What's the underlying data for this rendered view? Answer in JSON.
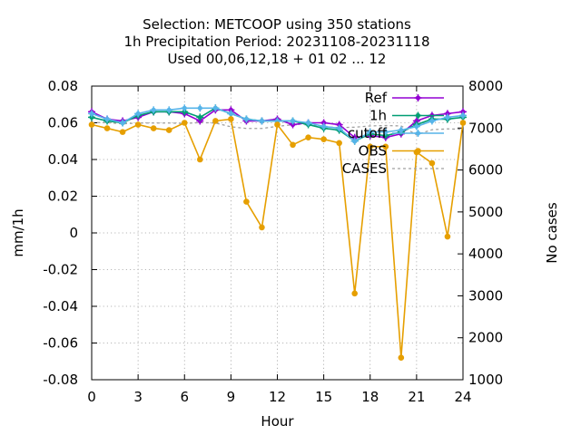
{
  "chart_data": {
    "type": "line",
    "title": [
      "Selection: METCOOP using   350 stations",
      "1h Precipitation   Period: 20231108-20231118",
      "Used  00,06,12,18 + 01 02 ... 12"
    ],
    "xlabel": "Hour",
    "ylabel": "mm/1h",
    "y2label": "No cases",
    "xlim": [
      0,
      24
    ],
    "ylim": [
      -0.08,
      0.08
    ],
    "y2lim": [
      1000,
      8000
    ],
    "xticks": [
      0,
      3,
      6,
      9,
      12,
      15,
      18,
      21,
      24
    ],
    "yticks": [
      -0.08,
      -0.06,
      -0.04,
      -0.02,
      0,
      0.02,
      0.04,
      0.06,
      0.08
    ],
    "y2ticks": [
      1000,
      2000,
      3000,
      4000,
      5000,
      6000,
      7000,
      8000
    ],
    "ytick_labels": [
      "-0.08",
      "-0.06",
      "-0.04",
      "-0.02",
      "0",
      "0.02",
      "0.04",
      "0.06",
      "0.08"
    ],
    "y2tick_labels": [
      "1000",
      "2000",
      "3000",
      "4000",
      "5000",
      "6000",
      "7000",
      "8000"
    ],
    "grid": true,
    "legend_position": "top-right",
    "x": [
      0,
      1,
      2,
      3,
      4,
      5,
      6,
      7,
      8,
      9,
      10,
      11,
      12,
      13,
      14,
      15,
      16,
      17,
      18,
      19,
      20,
      21,
      22,
      23,
      24
    ],
    "series": [
      {
        "name": "Ref",
        "color": "#9400d3",
        "marker": "plus",
        "axis": "y1",
        "values": [
          0.066,
          0.062,
          0.061,
          0.063,
          0.066,
          0.066,
          0.065,
          0.061,
          0.067,
          0.067,
          0.061,
          0.061,
          0.062,
          0.059,
          0.06,
          0.06,
          0.059,
          0.052,
          0.053,
          0.052,
          0.054,
          0.061,
          0.064,
          0.065,
          0.066
        ]
      },
      {
        "name": "1h",
        "color": "#009e73",
        "marker": "plus",
        "axis": "y1",
        "values": [
          0.063,
          0.061,
          0.06,
          0.064,
          0.066,
          0.066,
          0.066,
          0.063,
          0.068,
          0.065,
          0.062,
          0.061,
          0.061,
          0.061,
          0.059,
          0.057,
          0.056,
          0.05,
          0.054,
          0.053,
          0.055,
          0.059,
          0.062,
          0.062,
          0.063
        ]
      },
      {
        "name": "cutoff",
        "color": "#56b4e9",
        "marker": "plus",
        "axis": "y1",
        "values": [
          0.065,
          0.062,
          0.06,
          0.065,
          0.067,
          0.067,
          0.068,
          0.068,
          0.068,
          0.065,
          0.062,
          0.061,
          0.061,
          0.061,
          0.06,
          0.058,
          0.057,
          0.05,
          0.055,
          0.055,
          0.056,
          0.058,
          0.061,
          0.063,
          0.064
        ]
      },
      {
        "name": "OBS",
        "color": "#e69f00",
        "marker": "circle",
        "axis": "y1",
        "values": [
          0.059,
          0.057,
          0.055,
          0.059,
          0.057,
          0.056,
          0.06,
          0.04,
          0.061,
          0.062,
          0.017,
          0.003,
          0.059,
          0.048,
          0.052,
          0.051,
          0.049,
          -0.033,
          0.047,
          0.047,
          -0.068,
          0.044,
          0.038,
          -0.002,
          0.06
        ]
      },
      {
        "name": "CASES",
        "color": "#a0a0a0",
        "marker": "none",
        "dashed": true,
        "axis": "y2",
        "values": [
          7130,
          7130,
          7100,
          7120,
          7120,
          7120,
          7110,
          7130,
          7120,
          7030,
          6990,
          6990,
          7040,
          7080,
          7100,
          7030,
          7010,
          7020,
          7050,
          7060,
          7050,
          6840,
          6960,
          6980,
          6970
        ]
      }
    ]
  }
}
